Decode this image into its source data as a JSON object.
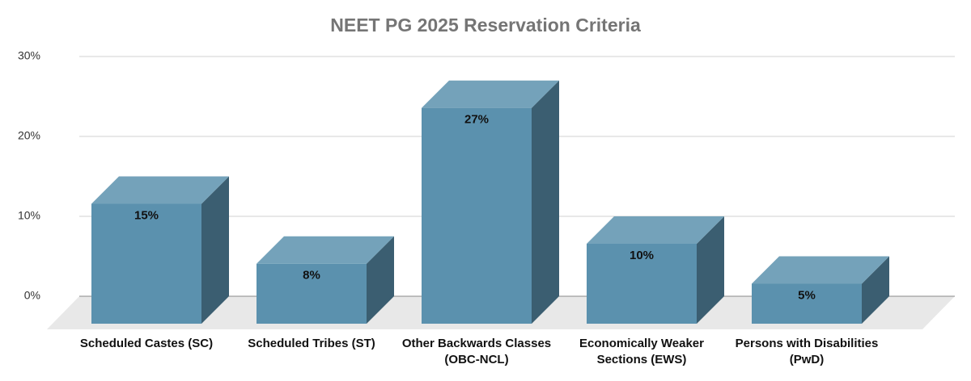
{
  "chart_data": {
    "type": "bar3d",
    "title": "NEET PG 2025 Reservation Criteria",
    "categories": [
      "Scheduled Castes (SC)",
      "Scheduled Tribes (ST)",
      "Other Backwards Classes (OBC-NCL)",
      "Economically Weaker Sections (EWS)",
      "Persons with Disabilities (PwD)"
    ],
    "values": [
      15,
      7.5,
      27,
      10,
      5
    ],
    "value_labels": [
      "15%",
      "8%",
      "27%",
      "10%",
      "5%"
    ],
    "color": "#5b91ae",
    "ylim": [
      0,
      30
    ],
    "yticks": [
      {
        "value": 0,
        "label": "0%"
      },
      {
        "value": 10,
        "label": "10%"
      },
      {
        "value": 20,
        "label": "20%"
      },
      {
        "value": 30,
        "label": "30%"
      }
    ],
    "grid": true
  }
}
